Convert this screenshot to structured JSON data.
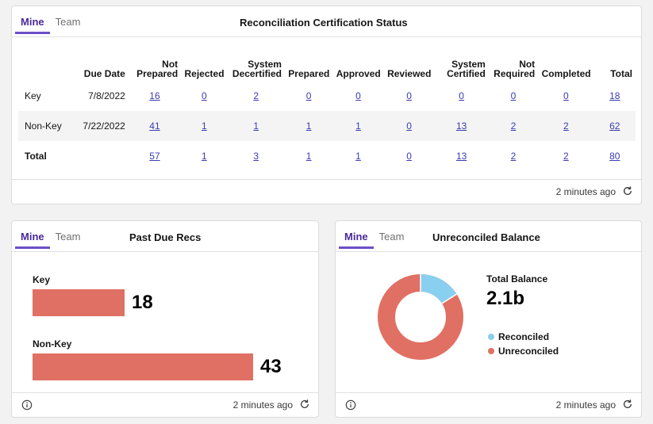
{
  "colors": {
    "accent": "#6c4fc7",
    "bar": "#e07063",
    "reconciled": "#88cff0",
    "unreconciled": "#e07063",
    "link": "#3b3bb3"
  },
  "status_card": {
    "tabs": [
      "Mine",
      "Team"
    ],
    "title": "Reconciliation Certification Status",
    "columns": [
      "",
      "Due Date",
      "Not Prepared",
      "Rejected",
      "System Decertified",
      "Prepared",
      "Approved",
      "Reviewed",
      "System Certified",
      "Not Required",
      "Completed",
      "Total"
    ],
    "rows": [
      {
        "label": "Key",
        "due": "7/8/2022",
        "values": [
          "16",
          "0",
          "2",
          "0",
          "0",
          "0",
          "0",
          "0",
          "0",
          "18"
        ]
      },
      {
        "label": "Non-Key",
        "due": "7/22/2022",
        "values": [
          "41",
          "1",
          "1",
          "1",
          "1",
          "0",
          "13",
          "2",
          "2",
          "62"
        ]
      },
      {
        "label": "Total",
        "due": "",
        "values": [
          "57",
          "1",
          "3",
          "1",
          "1",
          "0",
          "13",
          "2",
          "2",
          "80"
        ]
      }
    ],
    "updated": "2 minutes ago"
  },
  "pastdue_card": {
    "tabs": [
      "Mine",
      "Team"
    ],
    "title": "Past Due Recs",
    "bars": [
      {
        "label": "Key",
        "value": "18",
        "num": 18
      },
      {
        "label": "Non-Key",
        "value": "43",
        "num": 43
      }
    ],
    "updated": "2 minutes ago"
  },
  "balance_card": {
    "tabs": [
      "Mine",
      "Team"
    ],
    "title": "Unreconciled Balance",
    "total_label": "Total Balance",
    "total_value": "2.1b",
    "reconciled_fraction": 0.16,
    "legend": [
      "Reconciled",
      "Unreconciled"
    ],
    "updated": "2 minutes ago"
  }
}
